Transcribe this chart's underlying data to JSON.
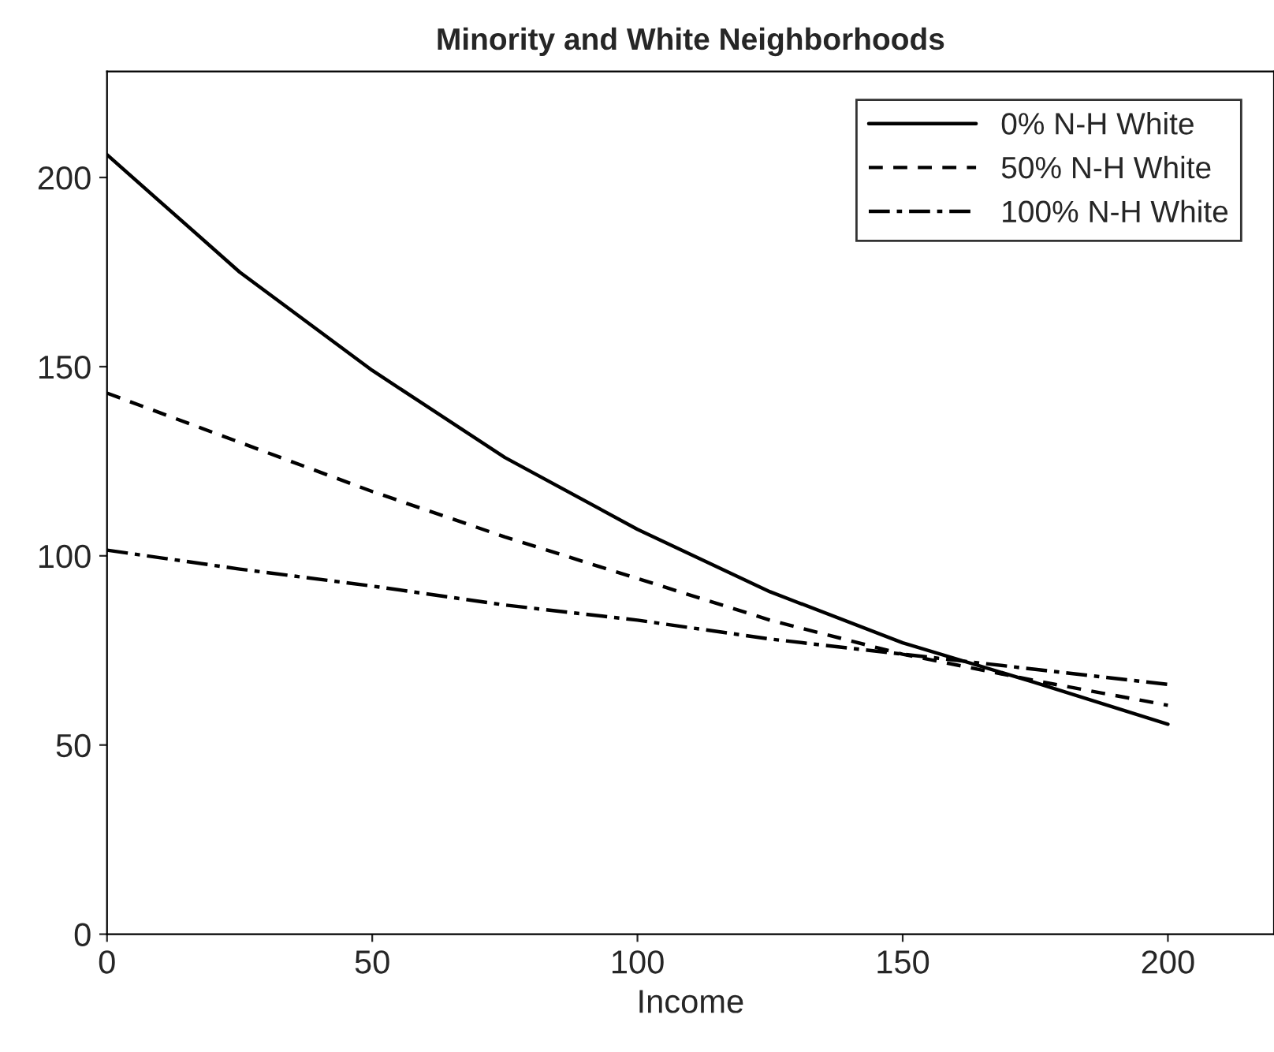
{
  "chart_data": {
    "type": "line",
    "title": "Minority and White Neighborhoods",
    "xlabel": "Income",
    "x": [
      0,
      25,
      50,
      75,
      100,
      125,
      150,
      175,
      200
    ],
    "series": [
      {
        "name": "0% N-H White",
        "color": "#000000",
        "line_style": "solid",
        "values": [
          206,
          175,
          149,
          126,
          107,
          90.5,
          77,
          66.5,
          55.5
        ]
      },
      {
        "name": "50% N-H White",
        "color": "#000000",
        "line_style": "dashed",
        "values": [
          143,
          130,
          117,
          105,
          94,
          83,
          74,
          67,
          60.5
        ]
      },
      {
        "name": "100% N-H White",
        "color": "#000000",
        "line_style": "dashdot",
        "values": [
          101.5,
          96.5,
          92,
          87,
          83,
          78,
          74,
          70,
          66
        ]
      }
    ],
    "xlim": [
      0,
      220
    ],
    "ylim": [
      0,
      228
    ],
    "xticks": [
      0,
      50,
      100,
      150,
      200
    ],
    "yticks": [
      0,
      50,
      100,
      150,
      200
    ],
    "grid": false,
    "legend": "top right",
    "marker": "none"
  }
}
